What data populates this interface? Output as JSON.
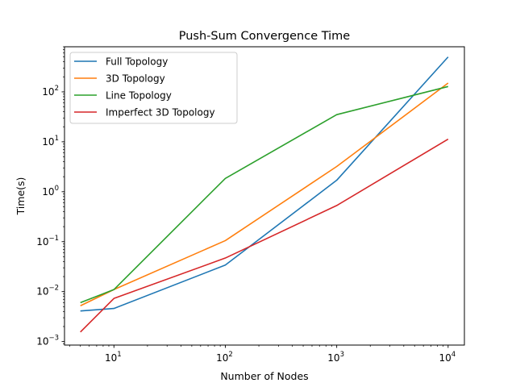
{
  "chart_data": {
    "type": "line",
    "title": "Push-Sum Convergence Time",
    "xlabel": "Number of Nodes",
    "ylabel": "Time(s)",
    "xscale": "log",
    "yscale": "log",
    "xlim": [
      3.6,
      14000
    ],
    "ylim": [
      0.00085,
      800
    ],
    "grid": false,
    "legend_position": "top-left",
    "x_ticks": [
      {
        "base": "10",
        "exp": "1",
        "value": 10
      },
      {
        "base": "10",
        "exp": "2",
        "value": 100
      },
      {
        "base": "10",
        "exp": "3",
        "value": 1000
      },
      {
        "base": "10",
        "exp": "4",
        "value": 10000
      }
    ],
    "y_ticks": [
      {
        "base": "10",
        "exp": "−3",
        "value": 0.001
      },
      {
        "base": "10",
        "exp": "−2",
        "value": 0.01
      },
      {
        "base": "10",
        "exp": "−1",
        "value": 0.1
      },
      {
        "base": "10",
        "exp": "0",
        "value": 1
      },
      {
        "base": "10",
        "exp": "1",
        "value": 10
      },
      {
        "base": "10",
        "exp": "2",
        "value": 100
      }
    ],
    "x": [
      5,
      10,
      100,
      1000,
      10000
    ],
    "series": [
      {
        "name": "Full Topology",
        "color": "#1f77b4",
        "values": [
          0.0041,
          0.0046,
          0.034,
          1.7,
          500
        ]
      },
      {
        "name": "3D Topology",
        "color": "#ff7f0e",
        "values": [
          0.0052,
          0.011,
          0.105,
          3.2,
          150
        ]
      },
      {
        "name": "Line Topology",
        "color": "#2ca02c",
        "values": [
          0.006,
          0.011,
          1.85,
          35,
          128
        ]
      },
      {
        "name": "Imperfect 3D Topology",
        "color": "#d62728",
        "values": [
          0.00155,
          0.0073,
          0.047,
          0.53,
          11.3
        ]
      }
    ]
  }
}
